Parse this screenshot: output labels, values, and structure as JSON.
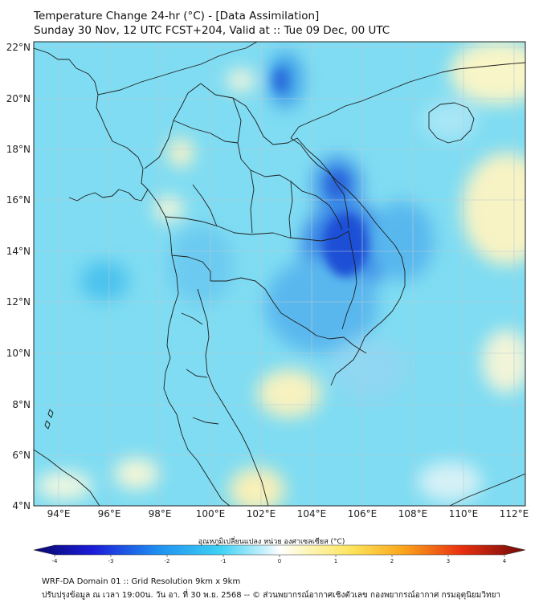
{
  "header": {
    "title_line1": "Temperature Change 24-hr (°C) - [Data Assimilation]",
    "title_line2": "Sunday 30 Nov, 12 UTC FCST+204, Valid at :: Tue 09 Dec, 00 UTC"
  },
  "map": {
    "lat_labels": [
      "22°N",
      "20°N",
      "18°N",
      "16°N",
      "14°N",
      "12°N",
      "10°N",
      "8°N",
      "6°N",
      "4°N"
    ],
    "lon_labels": [
      "94°E",
      "96°E",
      "98°E",
      "100°E",
      "102°E",
      "104°E",
      "106°E",
      "108°E",
      "110°E",
      "112°E"
    ],
    "ocean_color": "#7fdcf2",
    "land_border_color": "#1e1e1e",
    "grid_color": "#b9cbd6"
  },
  "colorbar": {
    "label": "อุณหภูมิเปลี่ยนแปลง หน่วย องศาเซลเซียส (°C)",
    "ticks": [
      "-4",
      "-3",
      "-2",
      "-1",
      "0",
      "1",
      "2",
      "3",
      "4"
    ],
    "min": -4,
    "max": 4
  },
  "footer": {
    "line1": "WRF-DA Domain 01 :: Grid Resolution 9km x 9km",
    "line2": "ปรับปรุงข้อมูล ณ เวลา 19:00น. วัน อา. ที่ 30 พ.ย. 2568 -- © ส่วนพยากรณ์อากาศเชิงตัวเลข กองพยากรณ์อากาศ กรมอุตุนิยมวิทยา"
  }
}
